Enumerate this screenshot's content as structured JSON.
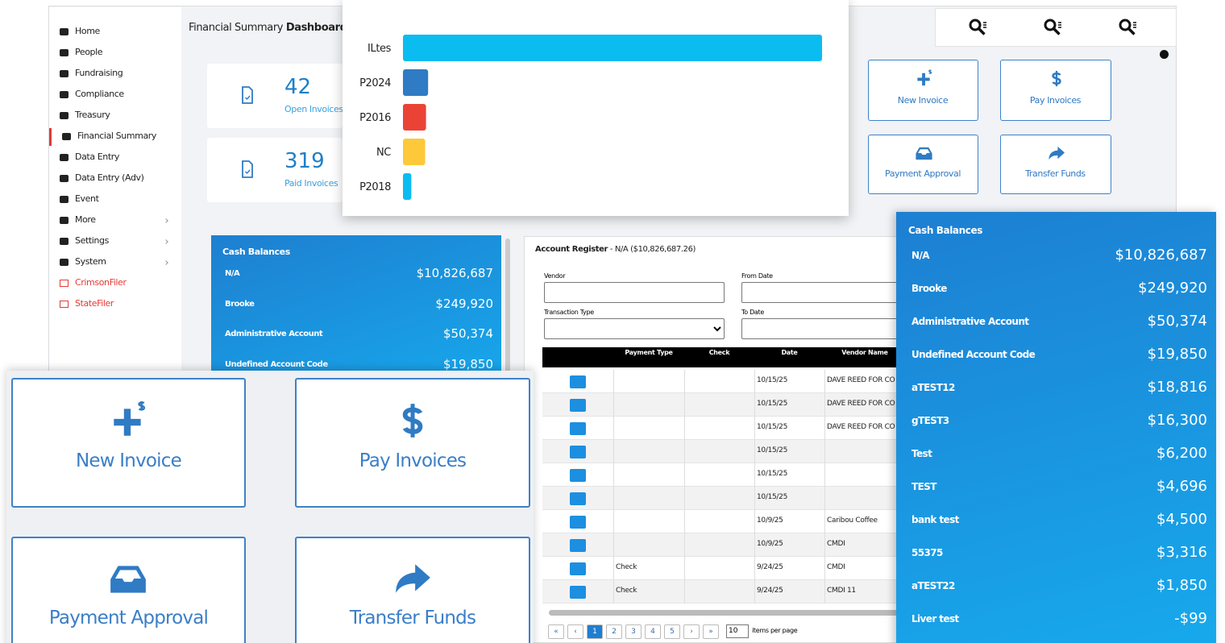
{
  "sidebar": {
    "items": [
      "Home",
      "People",
      "Fundraising",
      "Compliance",
      "Treasury",
      "Financial Summary",
      "Data Entry",
      "Data Entry (Adv)",
      "Event",
      "More",
      "Settings",
      "System",
      "CrimsonFiler",
      "StateFiler"
    ]
  },
  "header": {
    "title": "Financial Summary",
    "title_bold": "Dashboard"
  },
  "stats": [
    {
      "value": 42,
      "label": "Open Invoices"
    },
    {
      "value": 319,
      "label": "Paid Invoices"
    }
  ],
  "chart_data": {
    "type": "bar",
    "orientation": "horizontal",
    "categories": [
      "ILtes",
      "P2024",
      "P2016",
      "NC",
      "P2018"
    ],
    "values": [
      100,
      6,
      5.5,
      5.3,
      2
    ],
    "colors": [
      "#0bbcf0",
      "#2f7bc4",
      "#ea4335",
      "#fdc83a",
      "#0bbcf0"
    ],
    "xlim": [
      0,
      100
    ]
  },
  "actions": [
    "New Invoice",
    "Pay Invoices",
    "Payment Approval",
    "Transfer Funds"
  ],
  "cash_balances": {
    "title": "Cash Balances",
    "rows": [
      [
        "N/A",
        "$10,826,687"
      ],
      [
        "Brooke",
        "$249,920"
      ],
      [
        "Administrative Account",
        "$50,374"
      ],
      [
        "Undefined Account Code",
        "$19,850"
      ],
      [
        "aTEST12",
        "$18,816"
      ],
      [
        "gTEST3",
        "$16,300"
      ],
      [
        "Test",
        "$6,200"
      ],
      [
        "TEST",
        "$4,696"
      ],
      [
        "bank test",
        "$4,500"
      ],
      [
        "55375",
        "$3,316"
      ],
      [
        "aTEST22",
        "$1,850"
      ],
      [
        "Liver test",
        "-$99"
      ]
    ]
  },
  "account_register": {
    "title": "Account Register",
    "subtitle": "- N/A ($10,826,687.26)",
    "fields": [
      "Vendor",
      "From Date",
      "Transaction Type",
      "To Date"
    ],
    "columns": [
      "Payment Type",
      "Check",
      "Date",
      "Vendor Name"
    ],
    "rows": [
      [
        null,
        null,
        "10/15/25",
        "DAVE REED FOR CO"
      ],
      [
        null,
        null,
        "10/15/25",
        "DAVE REED FOR CO"
      ],
      [
        null,
        null,
        "10/15/25",
        "DAVE REED FOR CO"
      ],
      [
        null,
        null,
        "10/15/25",
        null
      ],
      [
        null,
        null,
        "10/15/25",
        null
      ],
      [
        null,
        null,
        "10/15/25",
        null
      ],
      [
        null,
        null,
        "10/9/25",
        "Caribou Coffee"
      ],
      [
        null,
        null,
        "10/9/25",
        "CMDI"
      ],
      [
        "Check",
        null,
        "9/24/25",
        "CMDI"
      ],
      [
        "Check",
        null,
        "9/24/25",
        "CMDI 11"
      ]
    ]
  },
  "pagination": {
    "first": "«",
    "prev": "‹",
    "pages": [
      1,
      2,
      3,
      4,
      5
    ],
    "next": "›",
    "last": "»",
    "per_page": 10,
    "per_page_label": "items per page"
  }
}
